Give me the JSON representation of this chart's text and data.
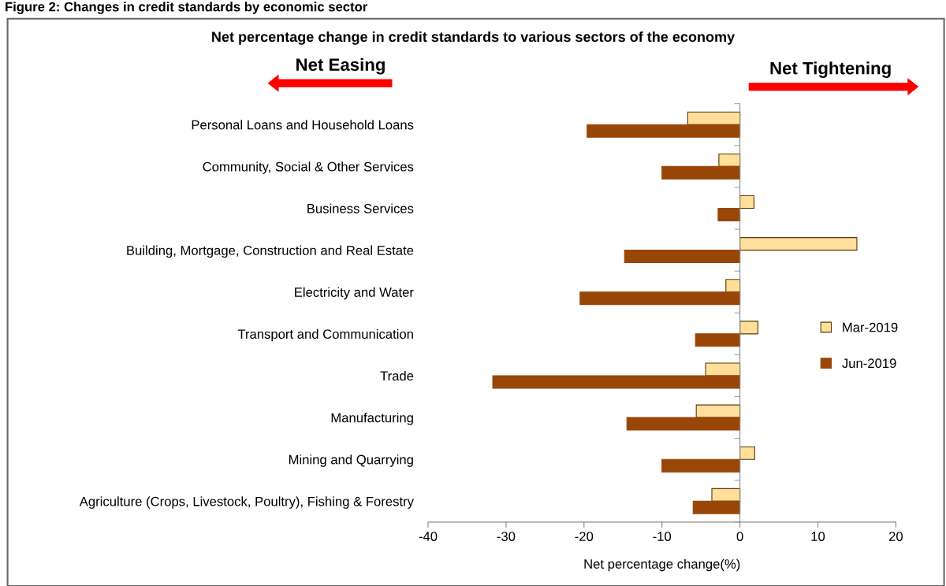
{
  "chart_data": {
    "type": "bar",
    "orientation": "horizontal",
    "title": "Net percentage change in credit standards to various sectors of the economy",
    "xlabel": "Net percentage change(%)",
    "annotations": [
      "Figure 2: Changes in credit standards by economic sector",
      "Net Easing",
      "Net Tightening"
    ],
    "categories": [
      "Personal Loans and Household Loans",
      "Community, Social & Other Services",
      "Business Services",
      "Building, Mortgage, Construction and Real Estate",
      "Electricity and Water",
      "Transport and Communication",
      "Trade",
      "Manufacturing",
      "Mining and Quarrying",
      "Agriculture (Crops, Livestock, Poultry), Fishing & Forestry"
    ],
    "series": [
      {
        "name": "Mar-2019",
        "color": "#ffdf99",
        "values": [
          -6.7,
          -2.7,
          1.8,
          15.0,
          -1.8,
          2.3,
          -4.4,
          -5.6,
          1.9,
          -3.6
        ]
      },
      {
        "name": "Jun-2019",
        "color": "#994708",
        "values": [
          -19.6,
          -10.0,
          -2.8,
          -14.8,
          -20.5,
          -5.7,
          -31.7,
          -14.5,
          -10.0,
          -6.0
        ]
      }
    ],
    "xlim": [
      -40,
      20
    ],
    "xticks": [
      -40,
      -30,
      -20,
      -10,
      0,
      10,
      20
    ],
    "legend": "right"
  }
}
